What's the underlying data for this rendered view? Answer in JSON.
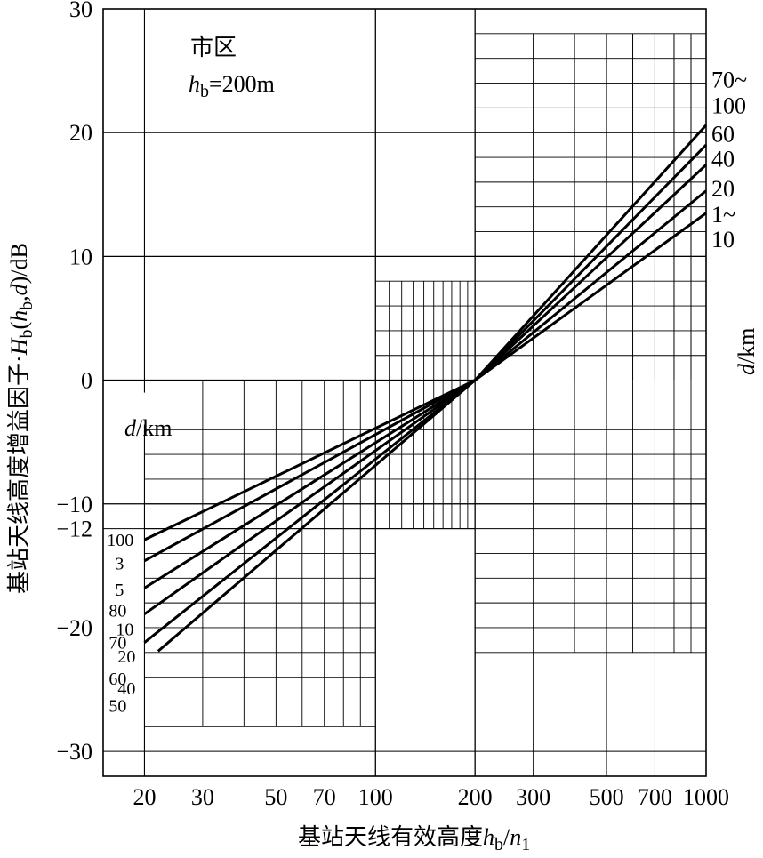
{
  "chart_data": {
    "type": "line",
    "x_scale": "log",
    "xlim": [
      15,
      1000
    ],
    "ylim": [
      -32,
      30
    ],
    "x_ticks": [
      {
        "value": 20,
        "label": "20"
      },
      {
        "value": 30,
        "label": "30"
      },
      {
        "value": 50,
        "label": "50"
      },
      {
        "value": 70,
        "label": "70"
      },
      {
        "value": 100,
        "label": "100"
      },
      {
        "value": 200,
        "label": "200"
      },
      {
        "value": 300,
        "label": "300"
      },
      {
        "value": 500,
        "label": "500"
      },
      {
        "value": 700,
        "label": "700"
      },
      {
        "value": 1000,
        "label": "1000"
      }
    ],
    "y_ticks": [
      {
        "value": 30,
        "label": "30"
      },
      {
        "value": 20,
        "label": "20"
      },
      {
        "value": 10,
        "label": "10"
      },
      {
        "value": 0,
        "label": "0"
      },
      {
        "value": -10,
        "label": "−10"
      },
      {
        "value": -12,
        "label": "−12"
      },
      {
        "value": -20,
        "label": "−20"
      },
      {
        "value": -30,
        "label": "−30"
      }
    ],
    "xlabel": "基站天线有效高度",
    "xlabel_h": "h",
    "xlabel_h_sub": "b",
    "xlabel_sep": "/",
    "xlabel_n": "n",
    "xlabel_n_sub": "1",
    "ylabel": "基站天线高度增益因子·H_b(h_b,d)/dB",
    "annotation_title": "市区",
    "annotation_h": "h",
    "annotation_h_sub": "b",
    "annotation_h_value": "=200m",
    "right_axis_label": "d/km",
    "left_d_label": "d/km",
    "series": [
      {
        "label": "1~10",
        "x": [
          20,
          200,
          1000
        ],
        "y": [
          -12.9,
          0,
          13.5
        ]
      },
      {
        "label": "20",
        "x": [
          20,
          200,
          1000
        ],
        "y": [
          -14.6,
          0,
          15.3
        ]
      },
      {
        "label": "40",
        "x": [
          20,
          200,
          1000
        ],
        "y": [
          -16.8,
          0,
          17.4
        ]
      },
      {
        "label": "60",
        "x": [
          20,
          200,
          1000
        ],
        "y": [
          -18.9,
          0,
          19.0
        ]
      },
      {
        "label": "70~100",
        "x": [
          20,
          200,
          1000
        ],
        "y": [
          -21.2,
          0,
          20.6
        ]
      },
      {
        "label": "",
        "x": [
          22,
          200
        ],
        "y": [
          -21.9,
          0
        ]
      }
    ],
    "right_labels": [
      {
        "text": "70~",
        "y": 24.3
      },
      {
        "text": "100",
        "y": 22.2
      },
      {
        "text": "60",
        "y": 19.9
      },
      {
        "text": "40",
        "y": 17.9
      },
      {
        "text": "20",
        "y": 15.5
      },
      {
        "text": "1~",
        "y": 13.4
      },
      {
        "text": "10",
        "y": 11.4
      }
    ],
    "left_labels": [
      {
        "text": "100",
        "x": 15.4,
        "y": -12.9
      },
      {
        "text": "3",
        "x": 16.3,
        "y": -14.8
      },
      {
        "text": "5",
        "x": 16.3,
        "y": -16.9
      },
      {
        "text": "80",
        "x": 15.6,
        "y": -18.6
      },
      {
        "text": "10",
        "x": 16.4,
        "y": -20.1
      },
      {
        "text": "70",
        "x": 15.6,
        "y": -21.2
      },
      {
        "text": "20",
        "x": 16.6,
        "y": -22.3
      },
      {
        "text": "60",
        "x": 15.6,
        "y": -24.1
      },
      {
        "text": "40",
        "x": 16.6,
        "y": -24.9
      },
      {
        "text": "50",
        "x": 15.6,
        "y": -26.3
      }
    ],
    "grid": true
  }
}
